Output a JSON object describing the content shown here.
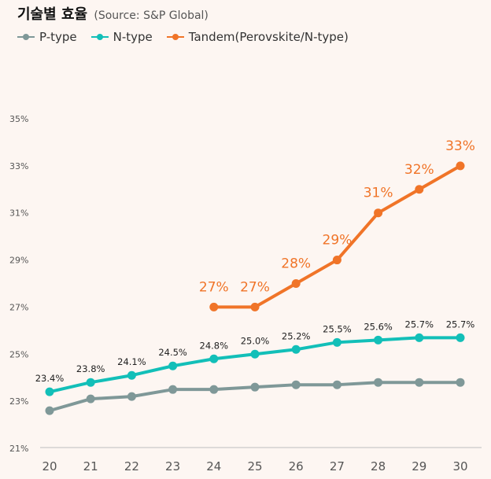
{
  "chart_data": {
    "type": "line",
    "title": "기술별 효율",
    "subtitle": "(Source: S&P Global)",
    "xlabel": "",
    "ylabel": "",
    "categories": [
      "20",
      "21",
      "22",
      "23",
      "24",
      "25",
      "26",
      "27",
      "28",
      "29",
      "30"
    ],
    "ylim": [
      21,
      35
    ],
    "yticks": [
      21,
      23,
      25,
      27,
      29,
      31,
      33,
      35
    ],
    "ytick_labels": [
      "21%",
      "23%",
      "25%",
      "27%",
      "29%",
      "31%",
      "33%",
      "35%"
    ],
    "grid": false,
    "legend_position": "top-left",
    "series": [
      {
        "name": "P-type",
        "color": "#7f9898",
        "values": [
          22.6,
          23.1,
          23.2,
          23.5,
          23.5,
          23.6,
          23.7,
          23.7,
          23.8,
          23.8,
          23.8
        ],
        "labels": null
      },
      {
        "name": "N-type",
        "color": "#12bfb8",
        "values": [
          23.4,
          23.8,
          24.1,
          24.5,
          24.8,
          25.0,
          25.2,
          25.5,
          25.6,
          25.7,
          25.7
        ],
        "labels": [
          "23.4%",
          "23.8%",
          "24.1%",
          "24.5%",
          "24.8%",
          "25.0%",
          "25.2%",
          "25.5%",
          "25.6%",
          "25.7%",
          "25.7%"
        ]
      },
      {
        "name": "Tandem(Perovskite/N-type)",
        "color": "#f07428",
        "values": [
          null,
          null,
          null,
          null,
          27,
          27,
          28,
          29,
          31,
          32,
          33
        ],
        "labels": [
          null,
          null,
          null,
          null,
          "27%",
          "27%",
          "28%",
          "29%",
          "31%",
          "32%",
          "33%"
        ]
      }
    ]
  }
}
